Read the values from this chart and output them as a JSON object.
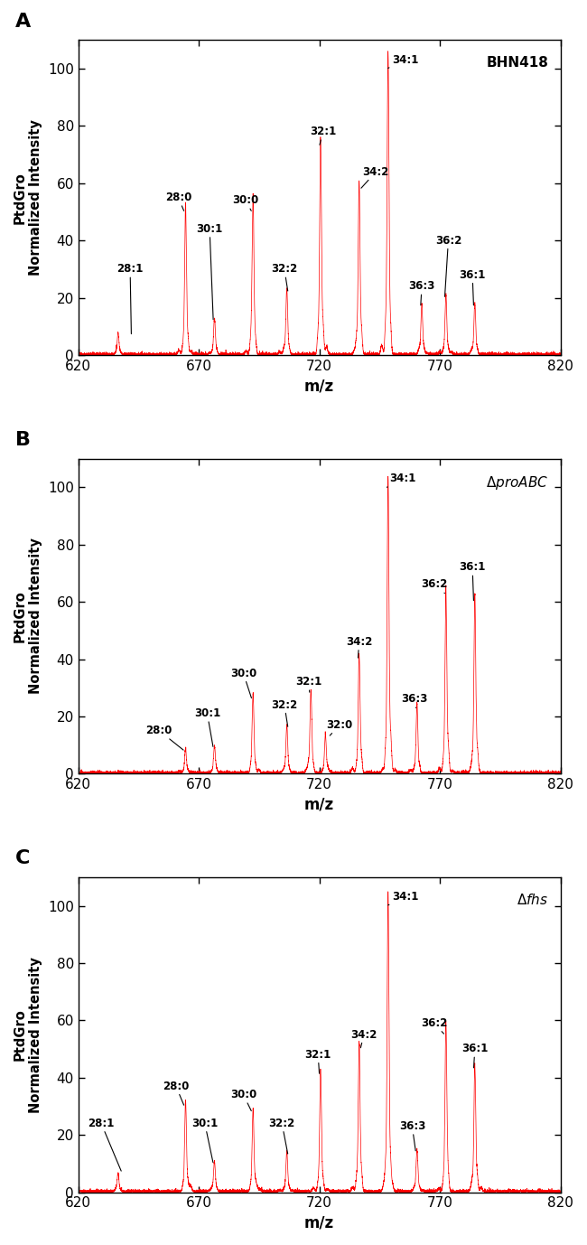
{
  "panels": [
    {
      "label": "A",
      "strain": "BHN418",
      "strain_italic": false,
      "peaks": [
        {
          "mz": 636.5,
          "intensity": 7,
          "label": "28:1",
          "ann_x": 636,
          "ann_y": 28,
          "tip_x": 642,
          "tip_y": 7
        },
        {
          "mz": 664.5,
          "intensity": 50,
          "label": "28:0",
          "ann_x": 656,
          "ann_y": 53,
          "tip_x": 664,
          "tip_y": 50
        },
        {
          "mz": 676.5,
          "intensity": 12,
          "label": "30:1",
          "ann_x": 669,
          "ann_y": 42,
          "tip_x": 676,
          "tip_y": 12
        },
        {
          "mz": 692.5,
          "intensity": 52,
          "label": "30:0",
          "ann_x": 684,
          "ann_y": 52,
          "tip_x": 692,
          "tip_y": 50
        },
        {
          "mz": 706.5,
          "intensity": 22,
          "label": "32:2",
          "ann_x": 700,
          "ann_y": 28,
          "tip_x": 707,
          "tip_y": 22
        },
        {
          "mz": 720.5,
          "intensity": 73,
          "label": "32:1",
          "ann_x": 716,
          "ann_y": 76,
          "tip_x": 720,
          "tip_y": 73
        },
        {
          "mz": 736.5,
          "intensity": 58,
          "label": "34:2",
          "ann_x": 738,
          "ann_y": 62,
          "tip_x": 737,
          "tip_y": 58
        },
        {
          "mz": 748.5,
          "intensity": 100,
          "label": "34:1",
          "ann_x": 750,
          "ann_y": 101,
          "tip_x": 748,
          "tip_y": 100
        },
        {
          "mz": 762.5,
          "intensity": 17,
          "label": "36:3",
          "ann_x": 757,
          "ann_y": 22,
          "tip_x": 762,
          "tip_y": 17
        },
        {
          "mz": 772.5,
          "intensity": 20,
          "label": "36:2",
          "ann_x": 768,
          "ann_y": 38,
          "tip_x": 772,
          "tip_y": 20
        },
        {
          "mz": 784.5,
          "intensity": 17,
          "label": "36:1",
          "ann_x": 778,
          "ann_y": 26,
          "tip_x": 784,
          "tip_y": 17
        }
      ],
      "xlim": [
        620,
        820
      ],
      "ylim": [
        0,
        110
      ]
    },
    {
      "label": "B",
      "strain": "ΔproABC",
      "strain_italic": true,
      "peaks": [
        {
          "mz": 664.5,
          "intensity": 8,
          "label": "28:0",
          "ann_x": 648,
          "ann_y": 13,
          "tip_x": 664,
          "tip_y": 8
        },
        {
          "mz": 676.5,
          "intensity": 9,
          "label": "30:1",
          "ann_x": 668,
          "ann_y": 19,
          "tip_x": 676,
          "tip_y": 9
        },
        {
          "mz": 692.5,
          "intensity": 26,
          "label": "30:0",
          "ann_x": 683,
          "ann_y": 33,
          "tip_x": 692,
          "tip_y": 26
        },
        {
          "mz": 706.5,
          "intensity": 16,
          "label": "32:2",
          "ann_x": 700,
          "ann_y": 22,
          "tip_x": 707,
          "tip_y": 16
        },
        {
          "mz": 716.5,
          "intensity": 28,
          "label": "32:1",
          "ann_x": 710,
          "ann_y": 30,
          "tip_x": 716,
          "tip_y": 28
        },
        {
          "mz": 722.5,
          "intensity": 13,
          "label": "32:0",
          "ann_x": 723,
          "ann_y": 15,
          "tip_x": 724,
          "tip_y": 13
        },
        {
          "mz": 736.5,
          "intensity": 40,
          "label": "34:2",
          "ann_x": 731,
          "ann_y": 44,
          "tip_x": 736,
          "tip_y": 40
        },
        {
          "mz": 748.5,
          "intensity": 100,
          "label": "34:1",
          "ann_x": 749,
          "ann_y": 101,
          "tip_x": 748,
          "tip_y": 100
        },
        {
          "mz": 760.5,
          "intensity": 23,
          "label": "36:3",
          "ann_x": 754,
          "ann_y": 24,
          "tip_x": 760,
          "tip_y": 23
        },
        {
          "mz": 772.5,
          "intensity": 63,
          "label": "36:2",
          "ann_x": 762,
          "ann_y": 64,
          "tip_x": 772,
          "tip_y": 63
        },
        {
          "mz": 784.5,
          "intensity": 60,
          "label": "36:1",
          "ann_x": 778,
          "ann_y": 70,
          "tip_x": 784,
          "tip_y": 60
        }
      ],
      "xlim": [
        620,
        820
      ],
      "ylim": [
        0,
        110
      ]
    },
    {
      "label": "C",
      "strain": "Δfhs",
      "strain_italic": true,
      "peaks": [
        {
          "mz": 636.5,
          "intensity": 6,
          "label": "28:1",
          "ann_x": 624,
          "ann_y": 22,
          "tip_x": 638,
          "tip_y": 7
        },
        {
          "mz": 664.5,
          "intensity": 30,
          "label": "28:0",
          "ann_x": 655,
          "ann_y": 35,
          "tip_x": 664,
          "tip_y": 30
        },
        {
          "mz": 676.5,
          "intensity": 10,
          "label": "30:1",
          "ann_x": 667,
          "ann_y": 22,
          "tip_x": 676,
          "tip_y": 10
        },
        {
          "mz": 692.5,
          "intensity": 28,
          "label": "30:0",
          "ann_x": 683,
          "ann_y": 32,
          "tip_x": 692,
          "tip_y": 28
        },
        {
          "mz": 706.5,
          "intensity": 13,
          "label": "32:2",
          "ann_x": 699,
          "ann_y": 22,
          "tip_x": 707,
          "tip_y": 13
        },
        {
          "mz": 720.5,
          "intensity": 41,
          "label": "32:1",
          "ann_x": 714,
          "ann_y": 46,
          "tip_x": 720,
          "tip_y": 41
        },
        {
          "mz": 736.5,
          "intensity": 50,
          "label": "34:2",
          "ann_x": 733,
          "ann_y": 53,
          "tip_x": 737,
          "tip_y": 50
        },
        {
          "mz": 748.5,
          "intensity": 100,
          "label": "34:1",
          "ann_x": 750,
          "ann_y": 101,
          "tip_x": 748,
          "tip_y": 100
        },
        {
          "mz": 760.5,
          "intensity": 14,
          "label": "36:3",
          "ann_x": 753,
          "ann_y": 21,
          "tip_x": 760,
          "tip_y": 14
        },
        {
          "mz": 772.5,
          "intensity": 55,
          "label": "36:2",
          "ann_x": 762,
          "ann_y": 57,
          "tip_x": 772,
          "tip_y": 55
        },
        {
          "mz": 784.5,
          "intensity": 43,
          "label": "36:1",
          "ann_x": 779,
          "ann_y": 48,
          "tip_x": 784,
          "tip_y": 43
        }
      ],
      "xlim": [
        620,
        820
      ],
      "ylim": [
        0,
        110
      ]
    }
  ],
  "line_color": "#FF0000",
  "background_color": "#FFFFFF",
  "xlabel": "m/z",
  "ylabel": "PtdGro\nNormalized Intensity",
  "xticks": [
    620,
    670,
    720,
    770,
    820
  ],
  "yticks": [
    0,
    20,
    40,
    60,
    80,
    100
  ],
  "annotation_fontsize": 8.5,
  "label_fontsize": 16,
  "axis_fontsize": 11,
  "strain_fontsize": 11
}
